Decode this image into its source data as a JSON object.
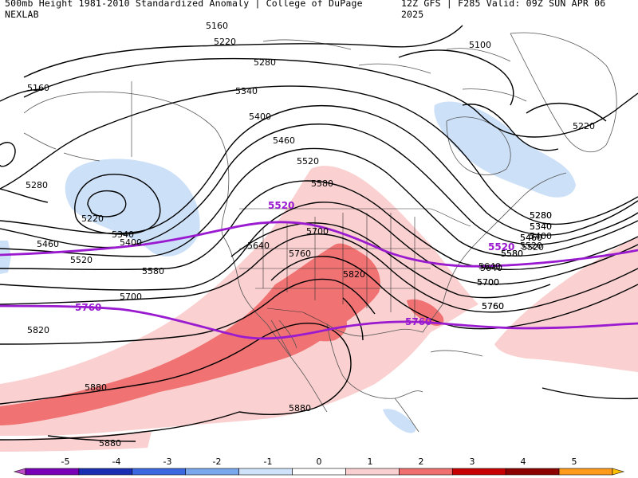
{
  "header": {
    "left_title": "500mb Height 1981-2010 Standardized Anomaly | College of DuPage NEXLAB",
    "right_title": "12Z GFS | F285 Valid: 09Z SUN APR 06 2025"
  },
  "contour_labels": [
    "5160",
    "5220",
    "5280",
    "5340",
    "5400",
    "5460",
    "5520",
    "5580",
    "5640",
    "5700",
    "5760",
    "5820",
    "5880",
    "5100",
    "5160",
    "5220",
    "5280",
    "5340",
    "5400",
    "5460",
    "5520",
    "5580",
    "5640",
    "5700",
    "5760",
    "5820",
    "5880",
    "5880",
    "5280",
    "5340",
    "5460",
    "5520",
    "5580",
    "5640",
    "5700",
    "5760",
    "5220",
    "5280",
    "5340",
    "5400",
    "5460",
    "5520",
    "5580",
    "5700"
  ],
  "highlight_labels": [
    "5520",
    "5760",
    "5520",
    "5760"
  ],
  "colorbar": {
    "ticks": [
      "-5",
      "-4",
      "-3",
      "-2",
      "-1",
      "0",
      "1",
      "2",
      "3",
      "4",
      "5"
    ],
    "colors": [
      "#c050c8",
      "#7a00b8",
      "#1a2eb4",
      "#3a68e0",
      "#7aa6ec",
      "#cfe2fa",
      "#ffffff",
      "#f9cfcf",
      "#f07070",
      "#c80000",
      "#8c0000",
      "#ff9a1a",
      "#ffc000"
    ]
  },
  "colors": {
    "neg_anom": "#cce0f8",
    "pos_anom_1": "#fad0d0",
    "pos_anom_2": "#f07272",
    "highlight_contour": "#9a1ad0"
  }
}
